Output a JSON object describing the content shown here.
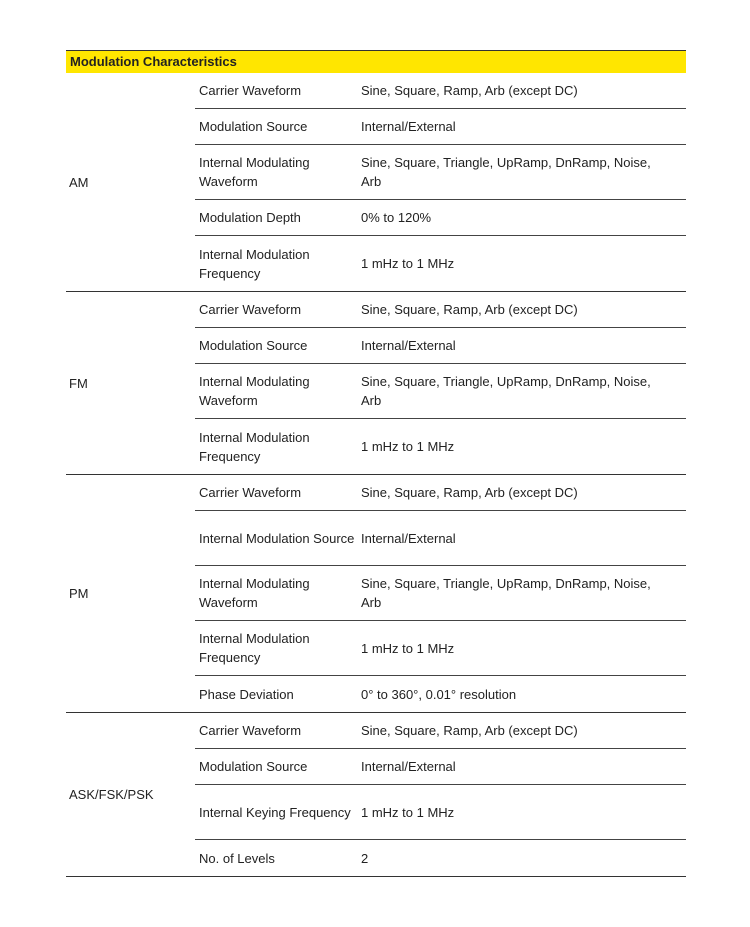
{
  "title": "Modulation Characteristics",
  "header_color": "#ffe600",
  "groups": [
    {
      "name": "AM",
      "rows": [
        {
          "param": "Carrier Waveform",
          "value": "Sine, Square, Ramp, Arb (except DC)"
        },
        {
          "param": "Modulation Source",
          "value": "Internal/External"
        },
        {
          "param": "Internal Modulating Waveform",
          "value": "Sine, Square, Triangle, UpRamp, DnRamp, Noise, Arb"
        },
        {
          "param": "Modulation Depth",
          "value": "0% to 120%"
        },
        {
          "param": "Internal Modulation Frequency",
          "value": "1 mHz to 1 MHz"
        }
      ]
    },
    {
      "name": "FM",
      "rows": [
        {
          "param": "Carrier Waveform",
          "value": "Sine, Square, Ramp, Arb (except DC)"
        },
        {
          "param": "Modulation Source",
          "value": "Internal/External"
        },
        {
          "param": "Internal Modulating Waveform",
          "value": "Sine, Square, Triangle, UpRamp, DnRamp, Noise, Arb"
        },
        {
          "param": "Internal Modulation Frequency",
          "value": "1 mHz to 1 MHz"
        }
      ]
    },
    {
      "name": "PM",
      "rows": [
        {
          "param": "Carrier Waveform",
          "value": "Sine, Square, Ramp, Arb (except DC)"
        },
        {
          "param": "Internal Modulation Source",
          "value": "Internal/External"
        },
        {
          "param": "Internal Modulating Waveform",
          "value": "Sine, Square, Triangle, UpRamp, DnRamp, Noise, Arb"
        },
        {
          "param": "Internal Modulation Frequency",
          "value": "1 mHz to 1 MHz"
        },
        {
          "param": "Phase Deviation",
          "value": "0° to 360°, 0.01° resolution"
        }
      ]
    },
    {
      "name": "ASK/FSK/PSK",
      "rows": [
        {
          "param": "Carrier Waveform",
          "value": "Sine, Square, Ramp, Arb (except DC)"
        },
        {
          "param": "Modulation Source",
          "value": "Internal/External"
        },
        {
          "param": "Internal Keying Frequency",
          "value": "1 mHz to 1 MHz"
        },
        {
          "param": "No. of Levels",
          "value": "2"
        }
      ]
    }
  ]
}
